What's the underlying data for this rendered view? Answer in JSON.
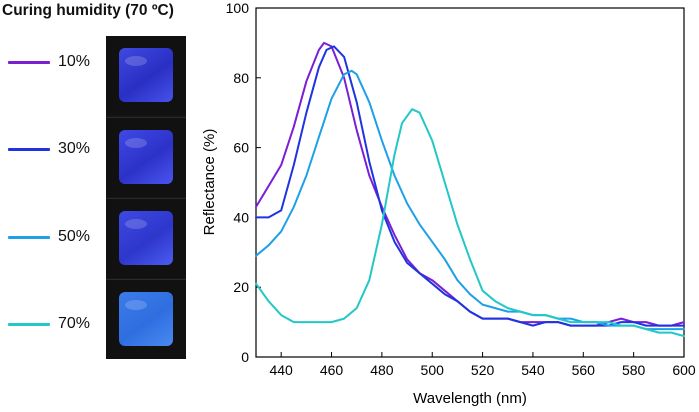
{
  "legend": {
    "title": "Curing humidity (70 ºC)",
    "items": [
      {
        "label": "10%",
        "color": "#7a1fd6"
      },
      {
        "label": "30%",
        "color": "#1e34e0"
      },
      {
        "label": "50%",
        "color": "#1ea0e8"
      },
      {
        "label": "70%",
        "color": "#22c7c7"
      }
    ]
  },
  "chart_data": {
    "type": "line",
    "title": "",
    "xlabel": "Wavelength (nm)",
    "ylabel": "Reflectance (%)",
    "xlim": [
      430,
      600
    ],
    "ylim": [
      0,
      100
    ],
    "xticks": [
      440,
      460,
      480,
      500,
      520,
      540,
      560,
      580,
      600
    ],
    "yticks": [
      0,
      20,
      40,
      60,
      80,
      100
    ],
    "grid": false,
    "series": [
      {
        "name": "10%",
        "color": "#7a1fd6",
        "x": [
          430,
          435,
          440,
          445,
          450,
          455,
          457,
          460,
          465,
          470,
          475,
          480,
          485,
          490,
          495,
          500,
          505,
          510,
          515,
          520,
          525,
          530,
          535,
          540,
          545,
          550,
          555,
          560,
          565,
          570,
          575,
          580,
          585,
          590,
          595,
          600
        ],
        "y": [
          43,
          49,
          55,
          66,
          79,
          88,
          90,
          89,
          80,
          65,
          52,
          43,
          35,
          28,
          24,
          22,
          19,
          16,
          13,
          11,
          11,
          11,
          10,
          10,
          10,
          10,
          9,
          9,
          9,
          10,
          11,
          10,
          10,
          9,
          9,
          10
        ]
      },
      {
        "name": "30%",
        "color": "#1e34e0",
        "x": [
          430,
          435,
          440,
          445,
          450,
          455,
          458,
          461,
          465,
          470,
          475,
          480,
          485,
          490,
          495,
          500,
          505,
          510,
          515,
          520,
          525,
          530,
          535,
          540,
          545,
          550,
          555,
          560,
          565,
          570,
          575,
          580,
          585,
          590,
          595,
          600
        ],
        "y": [
          40,
          40,
          42,
          55,
          70,
          83,
          88,
          89,
          86,
          73,
          56,
          42,
          33,
          27,
          24,
          21,
          18,
          16,
          13,
          11,
          11,
          11,
          10,
          9,
          10,
          10,
          9,
          9,
          9,
          9,
          10,
          10,
          9,
          9,
          9,
          9
        ]
      },
      {
        "name": "50%",
        "color": "#1ea0e8",
        "x": [
          430,
          435,
          440,
          445,
          450,
          455,
          460,
          465,
          468,
          470,
          475,
          480,
          485,
          490,
          495,
          500,
          505,
          510,
          515,
          520,
          525,
          530,
          535,
          540,
          545,
          550,
          555,
          560,
          565,
          570,
          575,
          580,
          585,
          590,
          595,
          600
        ],
        "y": [
          29,
          32,
          36,
          43,
          52,
          63,
          74,
          81,
          82,
          81,
          73,
          62,
          52,
          44,
          38,
          33,
          28,
          22,
          18,
          15,
          14,
          13,
          13,
          12,
          12,
          11,
          11,
          10,
          10,
          9,
          9,
          9,
          8,
          8,
          8,
          8
        ]
      },
      {
        "name": "70%",
        "color": "#22c7c7",
        "x": [
          430,
          435,
          440,
          445,
          450,
          455,
          460,
          465,
          470,
          475,
          480,
          485,
          488,
          492,
          495,
          500,
          505,
          510,
          515,
          520,
          525,
          530,
          535,
          540,
          545,
          550,
          555,
          560,
          565,
          570,
          575,
          580,
          585,
          590,
          595,
          600
        ],
        "y": [
          21,
          16,
          12,
          10,
          10,
          10,
          10,
          11,
          14,
          22,
          38,
          58,
          67,
          71,
          70,
          62,
          50,
          38,
          28,
          19,
          16,
          14,
          13,
          12,
          12,
          11,
          10,
          10,
          10,
          10,
          9,
          9,
          8,
          7,
          7,
          6
        ]
      }
    ]
  }
}
